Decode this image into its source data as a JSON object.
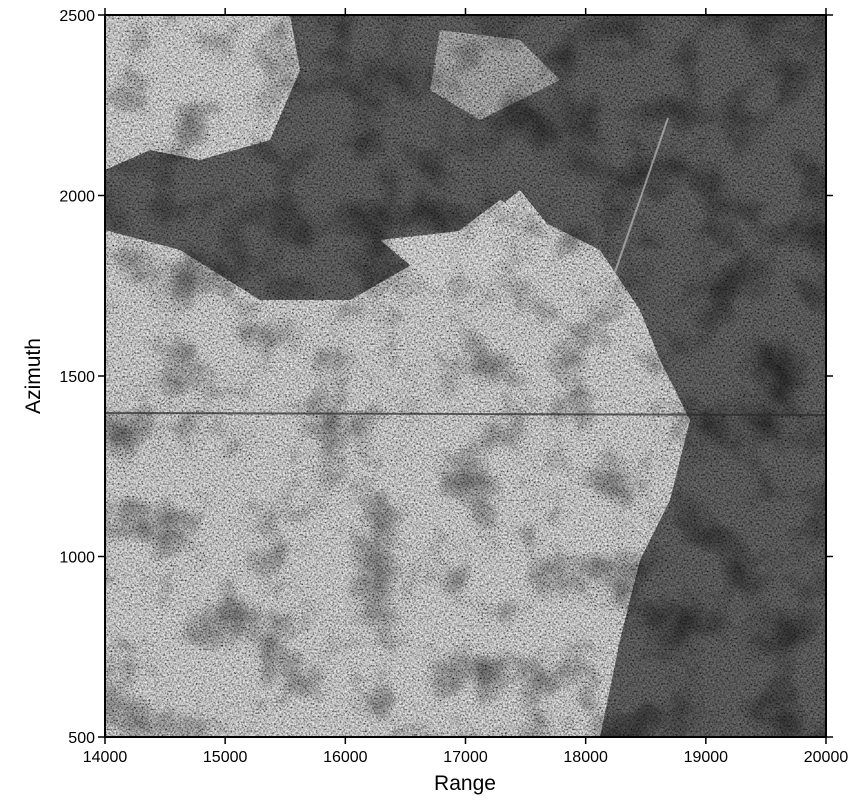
{
  "chart_data": {
    "type": "image",
    "xlabel": "Range",
    "ylabel": "Azimuth",
    "xlim": [
      14000,
      20000
    ],
    "ylim": [
      500,
      2500
    ],
    "xticks": [
      14000,
      15000,
      16000,
      17000,
      18000,
      19000,
      20000
    ],
    "yticks": [
      500,
      1000,
      1500,
      2000,
      2500
    ],
    "colormap": "gray"
  }
}
